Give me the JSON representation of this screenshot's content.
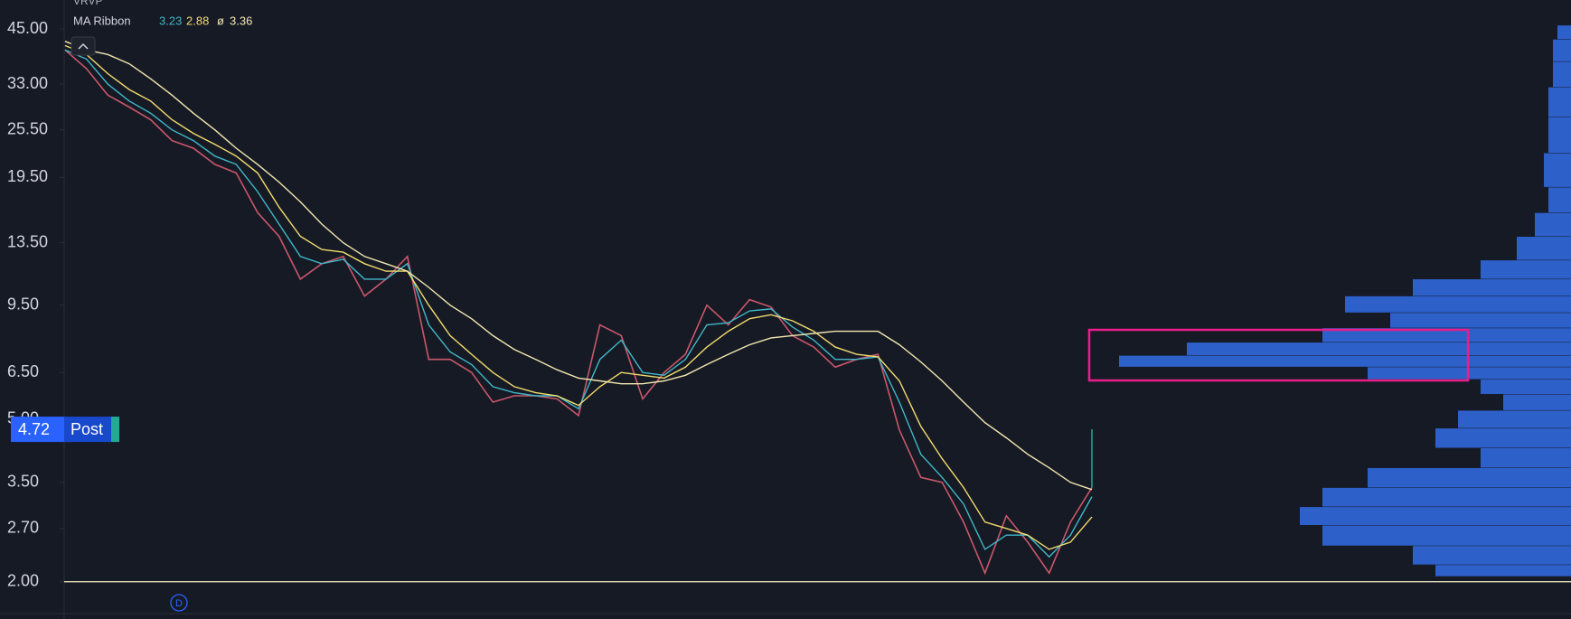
{
  "chart_data": {
    "type": "line",
    "indicator_title": "VRVP",
    "legend_title": "MA Ribbon",
    "legend_separator": "ø",
    "log_scale": true,
    "ylim": [
      1.68,
      53
    ],
    "yticks": [
      {
        "value": 45,
        "label": "45.00"
      },
      {
        "value": 33,
        "label": "33.00"
      },
      {
        "value": 25.5,
        "label": "25.50"
      },
      {
        "value": 19.5,
        "label": "19.50"
      },
      {
        "value": 13.5,
        "label": "13.50"
      },
      {
        "value": 9.5,
        "label": "9.50"
      },
      {
        "value": 6.5,
        "label": "6.50"
      },
      {
        "value": 5,
        "label": "5.00"
      },
      {
        "value": 3.5,
        "label": "3.50"
      },
      {
        "value": 2.7,
        "label": "2.70"
      },
      {
        "value": 2,
        "label": "2.00"
      }
    ],
    "series": [
      {
        "color": "#c9576a",
        "values": [
          40,
          36,
          31,
          29,
          27,
          24,
          23,
          21,
          20,
          16,
          14,
          11,
          12,
          12.5,
          10,
          11,
          12.5,
          7,
          7,
          6.5,
          5.5,
          5.7,
          5.7,
          5.6,
          5.1,
          8.5,
          8,
          5.6,
          6.5,
          7.2,
          9.5,
          8.5,
          9.8,
          9.4,
          8,
          7.5,
          6.7,
          7,
          7.2,
          4.7,
          3.6,
          3.5,
          2.8,
          2.1,
          2.9,
          2.5,
          2.1,
          2.8,
          3.4
        ]
      },
      {
        "color": "#3fb8c8",
        "values": [
          40,
          38,
          33,
          30,
          28,
          25.5,
          24,
          22,
          21,
          18,
          15,
          12.5,
          12,
          12.3,
          11,
          11,
          12,
          8.5,
          7.3,
          6.8,
          6,
          5.8,
          5.7,
          5.7,
          5.3,
          7,
          7.8,
          6.5,
          6.4,
          7,
          8.5,
          8.6,
          9.2,
          9.3,
          8.4,
          7.8,
          7,
          7,
          7.1,
          5.5,
          4.1,
          3.6,
          3.1,
          2.4,
          2.6,
          2.6,
          2.3,
          2.6,
          3.23
        ]
      },
      {
        "color": "#f2dc6d",
        "values": [
          41,
          39,
          35,
          32,
          30,
          27,
          25,
          23.5,
          22,
          20,
          16.5,
          14,
          13,
          12.8,
          12,
          11.5,
          11.5,
          9.5,
          8,
          7.2,
          6.5,
          6,
          5.8,
          5.7,
          5.4,
          6,
          6.5,
          6.4,
          6.3,
          6.7,
          7.5,
          8.2,
          8.8,
          9,
          8.7,
          8.2,
          7.5,
          7.2,
          7.1,
          6.2,
          4.8,
          4,
          3.4,
          2.8,
          2.7,
          2.6,
          2.4,
          2.5,
          2.88
        ]
      },
      {
        "color": "#f3e7b0",
        "values": [
          42,
          40,
          39,
          37,
          34,
          31,
          28,
          25.5,
          23,
          21,
          19,
          17,
          15,
          13.5,
          12.5,
          12,
          11.5,
          10.5,
          9.5,
          8.8,
          8,
          7.4,
          7,
          6.6,
          6.3,
          6.2,
          6.1,
          6.1,
          6.2,
          6.4,
          6.8,
          7.2,
          7.6,
          7.9,
          8,
          8.1,
          8.2,
          8.2,
          8.2,
          7.6,
          6.9,
          6.2,
          5.5,
          4.9,
          4.5,
          4.1,
          3.8,
          3.5,
          3.36
        ]
      }
    ],
    "horizontal_line": {
      "value": 2,
      "color": "#f5efc8"
    },
    "last_price": 4.72,
    "last_price_color": "#2962ff",
    "session_label": "Post",
    "interval_marker": "D",
    "volume_profile": {
      "color": "#3068dc",
      "levels": [
        45,
        40,
        35,
        30,
        25,
        20,
        17,
        15,
        13,
        11.5,
        10.5,
        9.5,
        8.7,
        8,
        7.4,
        6.9,
        6.5,
        6,
        5.5,
        5,
        4.5,
        4,
        3.6,
        3.2,
        2.9,
        2.6,
        2.3,
        2.1
      ],
      "volumes": [
        3,
        4,
        4,
        5,
        5,
        6,
        5,
        8,
        12,
        20,
        35,
        50,
        40,
        55,
        85,
        100,
        45,
        20,
        15,
        25,
        30,
        20,
        45,
        55,
        60,
        55,
        35,
        30
      ]
    }
  }
}
